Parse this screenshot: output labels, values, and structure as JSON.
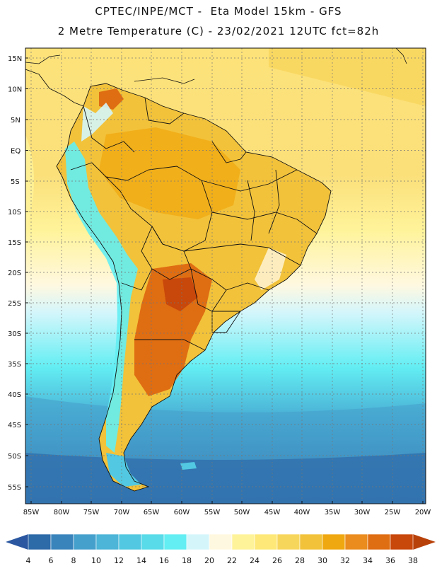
{
  "title_line1": "CPTEC/INPE/MCT -  Eta Model 15km - GFS",
  "title_line2": "2 Metre Temperature (C) - 23/02/2021 12UTC fct=82h",
  "lat_labels": [
    "15N",
    "10N",
    "5N",
    "EQ",
    "5S",
    "10S",
    "15S",
    "20S",
    "25S",
    "30S",
    "35S",
    "40S",
    "45S",
    "50S",
    "55S"
  ],
  "lon_labels": [
    "85W",
    "80W",
    "75W",
    "70W",
    "65W",
    "60W",
    "55W",
    "50W",
    "45W",
    "40W",
    "35W",
    "30W",
    "25W",
    "20W"
  ],
  "colorbar": {
    "values": [
      "4",
      "6",
      "8",
      "10",
      "12",
      "14",
      "16",
      "18",
      "20",
      "22",
      "24",
      "26",
      "28",
      "30",
      "32",
      "34",
      "36",
      "38"
    ],
    "colors": [
      "#2d6aa8",
      "#3a84bc",
      "#46a0cc",
      "#4cb5d8",
      "#52c8e2",
      "#59dbe9",
      "#63eef3",
      "#d4f6fb",
      "#fff8e0",
      "#fff39a",
      "#fde878",
      "#f7d65c",
      "#f2c23a",
      "#f0a810",
      "#ea8c1e",
      "#df6d12",
      "#c8470a"
    ],
    "left_arrow_color": "#2a57a0",
    "right_arrow_color": "#b8410a"
  }
}
